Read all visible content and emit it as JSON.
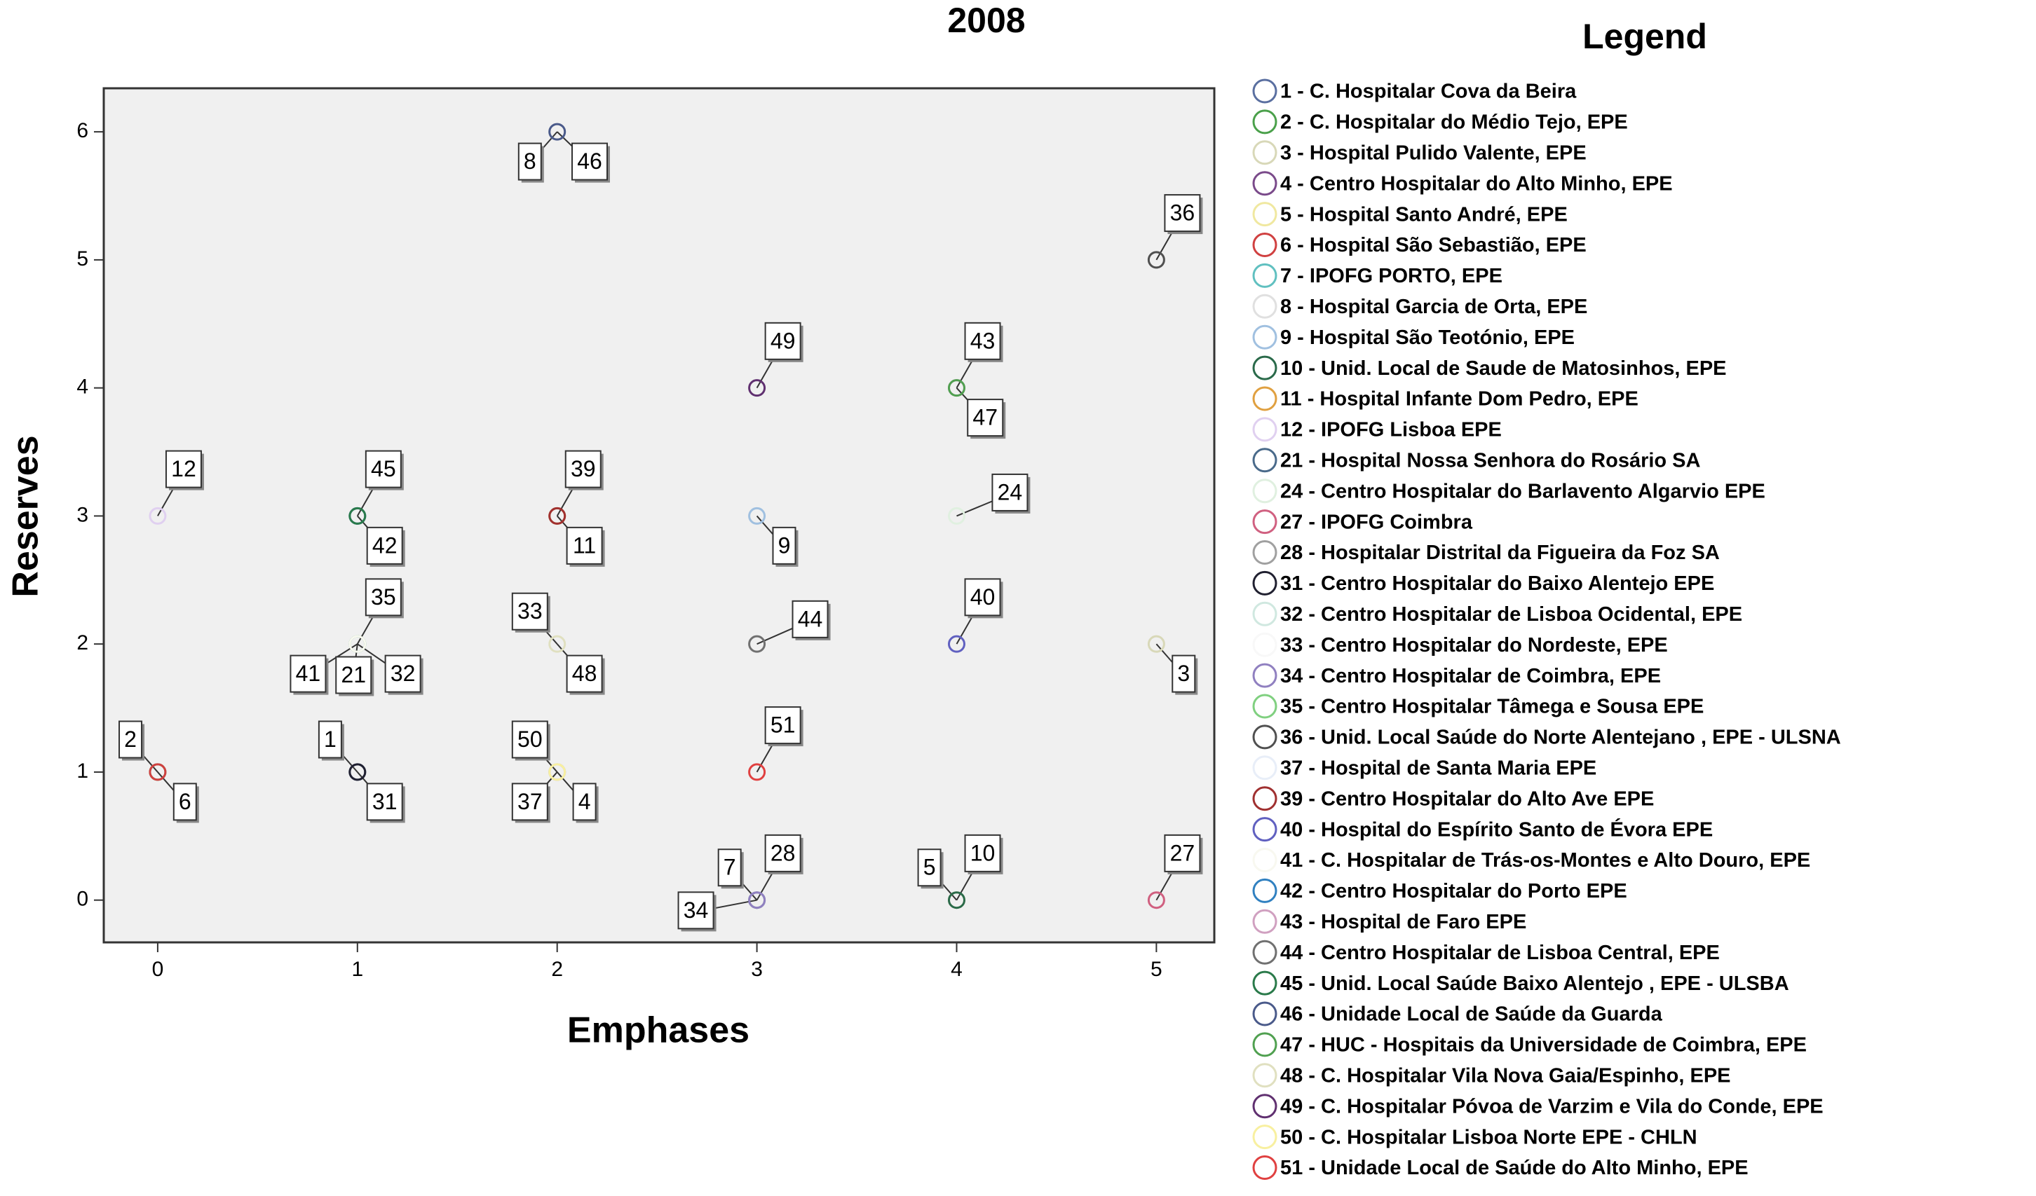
{
  "chart_data": {
    "type": "scatter",
    "title": "2008",
    "xlabel": "Emphases",
    "ylabel": "Reserves",
    "legend_title": "Legend",
    "xlim": [
      -0.27,
      5.29
    ],
    "ylim": [
      -0.33,
      6.34
    ],
    "xticks": [
      0,
      1,
      2,
      3,
      4,
      5
    ],
    "yticks": [
      0,
      1,
      2,
      3,
      4,
      5,
      6
    ],
    "series": [
      {
        "name": "1 - C. Hospitalar Cova da Beira",
        "color": "#5a6fa0",
        "x": [
          1
        ],
        "y": [
          1
        ],
        "point_labels": [
          "1"
        ]
      },
      {
        "name": "2 - C. Hospitalar do Médio Tejo, EPE",
        "color": "#4aa04a",
        "x": [
          0
        ],
        "y": [
          1
        ],
        "point_labels": [
          "2"
        ]
      },
      {
        "name": "3 - Hospital Pulido Valente, EPE",
        "color": "#d8d8b8",
        "x": [
          5
        ],
        "y": [
          2
        ],
        "point_labels": [
          "3"
        ]
      },
      {
        "name": "4 - Centro Hospitalar do Alto Minho, EPE",
        "color": "#7a4a8a",
        "x": [
          2
        ],
        "y": [
          1
        ],
        "point_labels": [
          "4"
        ]
      },
      {
        "name": "5 - Hospital Santo André, EPE",
        "color": "#f0e8a0",
        "x": [
          4
        ],
        "y": [
          0
        ],
        "point_labels": [
          "5"
        ]
      },
      {
        "name": "6 - Hospital São Sebastião, EPE",
        "color": "#d04040",
        "x": [
          0
        ],
        "y": [
          1
        ],
        "point_labels": [
          "6"
        ]
      },
      {
        "name": "7 - IPOFG PORTO, EPE",
        "color": "#60c0c0",
        "x": [
          3
        ],
        "y": [
          0
        ],
        "point_labels": [
          "7"
        ]
      },
      {
        "name": "8 - Hospital Garcia  de Orta, EPE",
        "color": "#e0e0e0",
        "x": [
          2
        ],
        "y": [
          6
        ],
        "point_labels": [
          "8"
        ]
      },
      {
        "name": "9 - Hospital São Teotónio, EPE",
        "color": "#a0c0e0",
        "x": [
          3
        ],
        "y": [
          3
        ],
        "point_labels": [
          "9"
        ]
      },
      {
        "name": "10 - Unid. Local de Saude de Matosinhos, EPE",
        "color": "#2a6a4a",
        "x": [
          4
        ],
        "y": [
          0
        ],
        "point_labels": [
          "10"
        ]
      },
      {
        "name": "11 - Hospital Infante Dom Pedro, EPE",
        "color": "#e0a040",
        "x": [
          2
        ],
        "y": [
          3
        ],
        "point_labels": [
          "11"
        ]
      },
      {
        "name": "12 - IPOFG Lisboa EPE",
        "color": "#e0d0f0",
        "x": [
          0
        ],
        "y": [
          3
        ],
        "point_labels": [
          "12"
        ]
      },
      {
        "name": "21 - Hospital Nossa Senhora do Rosário SA",
        "color": "#4a6a8a",
        "x": [
          1
        ],
        "y": [
          2
        ],
        "point_labels": [
          "21"
        ]
      },
      {
        "name": "24 - Centro Hospitalar do Barlavento Algarvio EPE",
        "color": "#e0f0e0",
        "x": [
          4
        ],
        "y": [
          3
        ],
        "point_labels": [
          "24"
        ]
      },
      {
        "name": "27 - IPOFG Coimbra",
        "color": "#d06080",
        "x": [
          5
        ],
        "y": [
          0
        ],
        "point_labels": [
          "27"
        ]
      },
      {
        "name": "28 - Hospitalar Distrital da Figueira da Foz SA",
        "color": "#a0a0a0",
        "x": [
          3
        ],
        "y": [
          0
        ],
        "point_labels": [
          "28"
        ]
      },
      {
        "name": "31 - Centro Hospitalar do Baixo Alentejo EPE",
        "color": "#202030",
        "x": [
          1
        ],
        "y": [
          1
        ],
        "point_labels": [
          "31"
        ]
      },
      {
        "name": "32 - Centro Hospitalar de Lisboa Ocidental, EPE",
        "color": "#d0e8e0",
        "x": [
          1
        ],
        "y": [
          2
        ],
        "point_labels": [
          "32"
        ]
      },
      {
        "name": "33 - Centro Hospitalar do Nordeste, EPE",
        "color": "#f8f8f8",
        "x": [
          2
        ],
        "y": [
          2
        ],
        "point_labels": [
          "33"
        ]
      },
      {
        "name": "34 - Centro Hospitalar de Coimbra, EPE",
        "color": "#9080c0",
        "x": [
          3
        ],
        "y": [
          0
        ],
        "point_labels": [
          "34"
        ]
      },
      {
        "name": "35 - Centro Hospitalar Tâmega e Sousa EPE",
        "color": "#80d080",
        "x": [
          1
        ],
        "y": [
          2
        ],
        "point_labels": [
          "35"
        ]
      },
      {
        "name": "36 - Unid. Local  Saúde do Norte Alentejano , EPE - ULSNA",
        "color": "#505050",
        "x": [
          5
        ],
        "y": [
          5
        ],
        "point_labels": [
          "36"
        ]
      },
      {
        "name": "37 - Hospital de Santa Maria EPE",
        "color": "#e8eef8",
        "x": [
          2
        ],
        "y": [
          1
        ],
        "point_labels": [
          "37"
        ]
      },
      {
        "name": "39 - Centro Hospitalar do Alto Ave EPE",
        "color": "#a03030",
        "x": [
          2
        ],
        "y": [
          3
        ],
        "point_labels": [
          "39"
        ]
      },
      {
        "name": "40 - Hospital do Espírito Santo de Évora EPE",
        "color": "#6060c0",
        "x": [
          4
        ],
        "y": [
          2
        ],
        "point_labels": [
          "40"
        ]
      },
      {
        "name": "41 - C. Hospitalar de Trás-os-Montes e Alto Douro, EPE",
        "color": "#f8f8f0",
        "x": [
          1
        ],
        "y": [
          2
        ],
        "point_labels": [
          "41"
        ]
      },
      {
        "name": "42 - Centro Hospitalar do Porto EPE",
        "color": "#3080c0",
        "x": [
          1
        ],
        "y": [
          3
        ],
        "point_labels": [
          "42"
        ]
      },
      {
        "name": "43 - Hospital de Faro EPE",
        "color": "#d0a0c0",
        "x": [
          4
        ],
        "y": [
          4
        ],
        "point_labels": [
          "43"
        ]
      },
      {
        "name": "44 - Centro Hospitalar de Lisboa Central, EPE",
        "color": "#707070",
        "x": [
          3
        ],
        "y": [
          2
        ],
        "point_labels": [
          "44"
        ]
      },
      {
        "name": "45 - Unid. Local Saúde Baixo Alentejo , EPE - ULSBA",
        "color": "#2a7a4a",
        "x": [
          1
        ],
        "y": [
          3
        ],
        "point_labels": [
          "45"
        ]
      },
      {
        "name": "46 - Unidade Local de Saúde da Guarda",
        "color": "#4a5a8a",
        "x": [
          2
        ],
        "y": [
          6
        ],
        "point_labels": [
          "46"
        ]
      },
      {
        "name": "47 - HUC - Hospitais da Universidade de Coimbra, EPE",
        "color": "#50a050",
        "x": [
          4
        ],
        "y": [
          4
        ],
        "point_labels": [
          "47"
        ]
      },
      {
        "name": "48 - C. Hospitalar Vila Nova Gaia/Espinho, EPE",
        "color": "#e0e0c0",
        "x": [
          2
        ],
        "y": [
          2
        ],
        "point_labels": [
          "48"
        ]
      },
      {
        "name": "49 - C. Hospitalar Póvoa de Varzim e Vila do Conde, EPE",
        "color": "#603070",
        "x": [
          3
        ],
        "y": [
          4
        ],
        "point_labels": [
          "49"
        ]
      },
      {
        "name": "50 - C. Hospitalar Lisboa Norte EPE - CHLN",
        "color": "#f8f0a0",
        "x": [
          2
        ],
        "y": [
          1
        ],
        "point_labels": [
          "50"
        ]
      },
      {
        "name": "51 - Unidade Local de Saúde do Alto Minho, EPE",
        "color": "#e04040",
        "x": [
          3
        ],
        "y": [
          1
        ],
        "point_labels": [
          "51"
        ]
      }
    ]
  }
}
